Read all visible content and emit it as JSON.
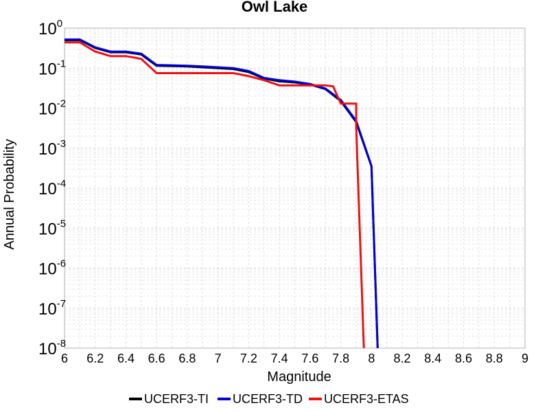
{
  "chart_data": {
    "type": "line",
    "title": "Owl Lake",
    "xlabel": "Magnitude",
    "ylabel": "Annual Probability",
    "xlim": [
      6,
      9
    ],
    "ylim": [
      1e-08,
      1
    ],
    "yscale": "log",
    "grid": true,
    "legend_position": "bottom",
    "x_ticks": [
      "6",
      "6.2",
      "6.4",
      "6.6",
      "6.8",
      "7",
      "7.2",
      "7.4",
      "7.6",
      "7.8",
      "8",
      "8.2",
      "8.4",
      "8.6",
      "8.8",
      "9"
    ],
    "y_ticks": [
      {
        "base": "10",
        "exp": "0"
      },
      {
        "base": "10",
        "exp": "-1"
      },
      {
        "base": "10",
        "exp": "-2"
      },
      {
        "base": "10",
        "exp": "-3"
      },
      {
        "base": "10",
        "exp": "-4"
      },
      {
        "base": "10",
        "exp": "-5"
      },
      {
        "base": "10",
        "exp": "-6"
      },
      {
        "base": "10",
        "exp": "-7"
      },
      {
        "base": "10",
        "exp": "-8"
      }
    ],
    "series": [
      {
        "name": "UCERF3-TI",
        "color": "#000000",
        "x": [
          6.0,
          6.1,
          6.2,
          6.3,
          6.4,
          6.5,
          6.6,
          6.7,
          6.8,
          6.9,
          7.0,
          7.1,
          7.2,
          7.3,
          7.4,
          7.5,
          7.6,
          7.7,
          7.8,
          7.9,
          8.0,
          8.04
        ],
        "y": [
          0.5,
          0.5,
          0.32,
          0.25,
          0.25,
          0.22,
          0.115,
          0.113,
          0.11,
          0.105,
          0.1,
          0.095,
          0.08,
          0.055,
          0.047,
          0.044,
          0.039,
          0.03,
          0.015,
          0.0045,
          0.00035,
          1e-08
        ]
      },
      {
        "name": "UCERF3-TD",
        "color": "#0000dd",
        "x": [
          6.0,
          6.1,
          6.2,
          6.3,
          6.4,
          6.5,
          6.6,
          6.7,
          6.8,
          6.9,
          7.0,
          7.1,
          7.2,
          7.3,
          7.4,
          7.5,
          7.6,
          7.7,
          7.8,
          7.9,
          8.0,
          8.04
        ],
        "y": [
          0.52,
          0.52,
          0.33,
          0.26,
          0.26,
          0.23,
          0.12,
          0.118,
          0.115,
          0.11,
          0.105,
          0.1,
          0.085,
          0.057,
          0.05,
          0.046,
          0.04,
          0.031,
          0.016,
          0.0048,
          0.00036,
          1e-08
        ]
      },
      {
        "name": "UCERF3-ETAS",
        "color": "#ee1111",
        "x": [
          6.0,
          6.1,
          6.2,
          6.3,
          6.4,
          6.5,
          6.6,
          6.7,
          6.8,
          6.9,
          7.0,
          7.1,
          7.2,
          7.3,
          7.4,
          7.5,
          7.6,
          7.7,
          7.75,
          7.8,
          7.9,
          7.9,
          7.95
        ],
        "y": [
          0.44,
          0.44,
          0.26,
          0.2,
          0.2,
          0.17,
          0.075,
          0.075,
          0.075,
          0.075,
          0.075,
          0.075,
          0.063,
          0.05,
          0.037,
          0.037,
          0.037,
          0.037,
          0.035,
          0.013,
          0.013,
          0.0035,
          1e-08
        ]
      }
    ]
  }
}
